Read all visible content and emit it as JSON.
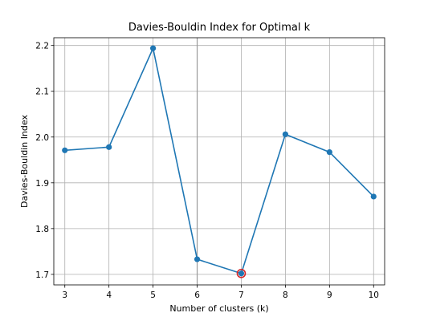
{
  "chart_data": {
    "type": "line",
    "title": "Davies-Bouldin Index for Optimal k",
    "xlabel": "Number of clusters (k)",
    "ylabel": "Davies-Bouldin Index",
    "x": [
      3,
      4,
      5,
      6,
      7,
      8,
      9,
      10
    ],
    "series": [
      {
        "values": [
          1.971,
          1.978,
          2.194,
          1.733,
          1.702,
          2.006,
          1.967,
          1.87
        ]
      }
    ],
    "xticks": [
      "3",
      "4",
      "5",
      "6",
      "7",
      "8",
      "9",
      "10"
    ],
    "yticks": [
      "1.7",
      "1.8",
      "1.9",
      "2.0",
      "2.1",
      "2.2"
    ],
    "xlim": [
      2.75,
      10.25
    ],
    "ylim": [
      1.677,
      2.217
    ],
    "grid": true,
    "highlight": {
      "x": 7,
      "y": 1.702,
      "color": "#d62728"
    },
    "vertical_line_x": 6,
    "line_color": "#1f77b4"
  }
}
